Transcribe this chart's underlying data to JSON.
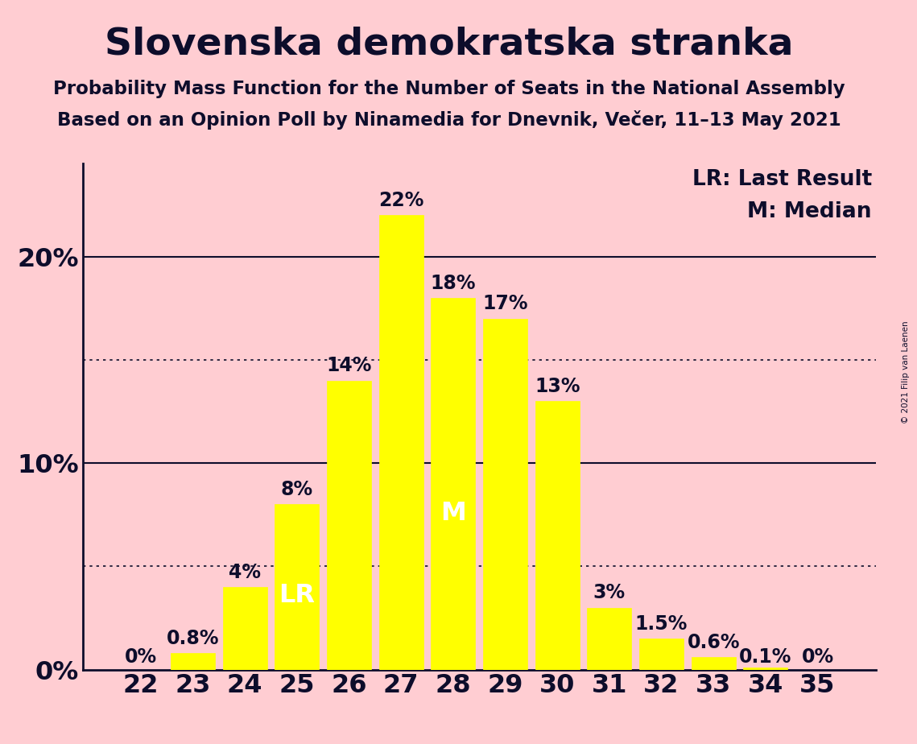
{
  "title": "Slovenska demokratska stranka",
  "subtitle1": "Probability Mass Function for the Number of Seats in the National Assembly",
  "subtitle2": "Based on an Opinion Poll by Ninamedia for Dnevnik, Večer, 11–13 May 2021",
  "copyright": "© 2021 Filip van Laenen",
  "legend_lr": "LR: Last Result",
  "legend_m": "M: Median",
  "categories": [
    22,
    23,
    24,
    25,
    26,
    27,
    28,
    29,
    30,
    31,
    32,
    33,
    34,
    35
  ],
  "values": [
    0.0,
    0.8,
    4.0,
    8.0,
    14.0,
    22.0,
    18.0,
    17.0,
    13.0,
    3.0,
    1.5,
    0.6,
    0.1,
    0.0
  ],
  "bar_color": "#FFFF00",
  "bar_edge_color": "#FFFF00",
  "bg_color": "#FFCDD2",
  "text_color": "#0D0D2B",
  "ylim": [
    0,
    24.5
  ],
  "yticks": [
    0,
    10,
    20
  ],
  "dotted_lines": [
    5,
    15
  ],
  "solid_lines": [
    10,
    20
  ],
  "lr_bar": 25,
  "median_bar": 28,
  "value_labels": [
    "0%",
    "0.8%",
    "4%",
    "8%",
    "14%",
    "22%",
    "18%",
    "17%",
    "13%",
    "3%",
    "1.5%",
    "0.6%",
    "0.1%",
    "0%"
  ],
  "title_fontsize": 34,
  "subtitle_fontsize": 16.5,
  "axis_tick_fontsize": 23,
  "bar_label_fontsize": 17,
  "legend_fontsize": 19,
  "lr_label_fontsize": 23,
  "m_label_fontsize": 23
}
